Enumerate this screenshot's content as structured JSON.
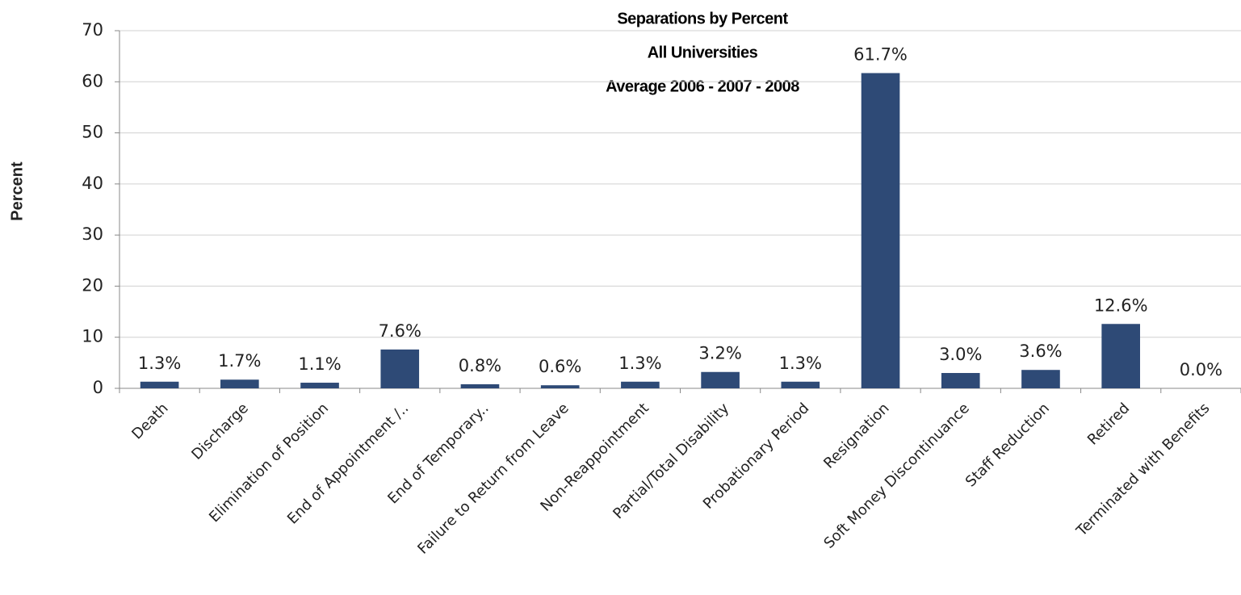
{
  "chart_data": {
    "type": "bar",
    "title": "Separations by Percent",
    "subtitle": [
      "All Universities",
      "Average 2006 - 2007 - 2008"
    ],
    "y_label": "Percent",
    "categories": [
      "Death",
      "Discharge",
      "Elimination of Position",
      "End of Appointment /..",
      "End of Temporary..",
      "Failure to Return from Leave",
      "Non-Reappointment",
      "Partial/Total Disability",
      "Probationary Period",
      "Resignation",
      "Soft Money Discontinuance",
      "Staff Reduction",
      "Retired",
      "Terminated with Benefits"
    ],
    "values": [
      1.3,
      1.7,
      1.1,
      7.6,
      0.8,
      0.6,
      1.3,
      3.2,
      1.3,
      61.7,
      3.0,
      3.6,
      12.6,
      0.0
    ],
    "value_labels": [
      "1.3%",
      "1.7%",
      "1.1%",
      "7.6%",
      "0.8%",
      "0.6%",
      "1.3%",
      "3.2%",
      "1.3%",
      "61.7%",
      "3.0%",
      "3.6%",
      "12.6%",
      "0.0%"
    ],
    "color": "#2e4a76",
    "ylim": [
      0,
      70
    ],
    "yticks": [
      0,
      10,
      20,
      30,
      40,
      50,
      60,
      70
    ],
    "grid": true
  }
}
